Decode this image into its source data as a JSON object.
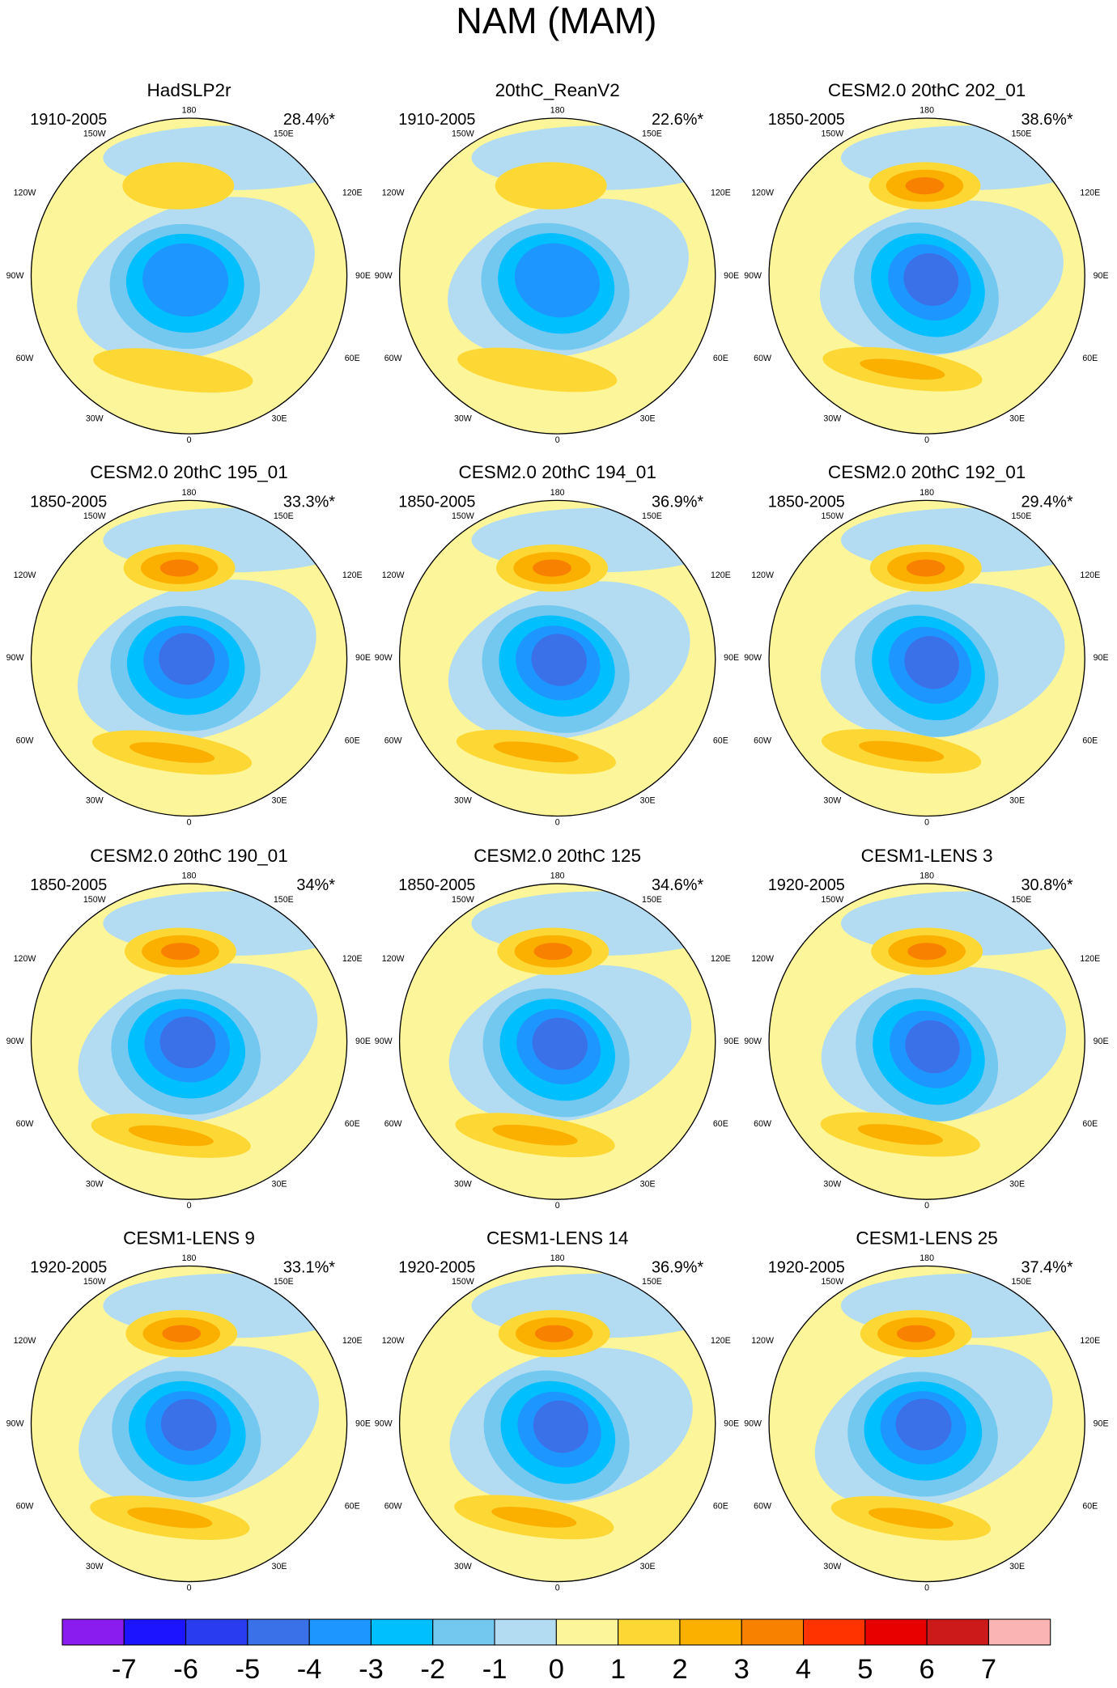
{
  "title": "NAM (MAM)",
  "panels": [
    {
      "title": "HadSLP2r",
      "period": "1910-2005",
      "variance": "28.4%*"
    },
    {
      "title": "20thC_ReanV2",
      "period": "1910-2005",
      "variance": "22.6%*"
    },
    {
      "title": "CESM2.0 20thC 202_01",
      "period": "1850-2005",
      "variance": "38.6%*"
    },
    {
      "title": "CESM2.0 20thC 195_01",
      "period": "1850-2005",
      "variance": "33.3%*"
    },
    {
      "title": "CESM2.0 20thC 194_01",
      "period": "1850-2005",
      "variance": "36.9%*"
    },
    {
      "title": "CESM2.0 20thC 192_01",
      "period": "1850-2005",
      "variance": "29.4%*"
    },
    {
      "title": "CESM2.0 20thC 190_01",
      "period": "1850-2005",
      "variance": "34%*"
    },
    {
      "title": "CESM2.0 20thC 125",
      "period": "1850-2005",
      "variance": "34.6%*"
    },
    {
      "title": "CESM1-LENS 3",
      "period": "1920-2005",
      "variance": "30.8%*"
    },
    {
      "title": "CESM1-LENS 9",
      "period": "1920-2005",
      "variance": "33.1%*"
    },
    {
      "title": "CESM1-LENS 14",
      "period": "1920-2005",
      "variance": "36.9%*"
    },
    {
      "title": "CESM1-LENS 25",
      "period": "1920-2005",
      "variance": "37.4%*"
    }
  ],
  "lon_labels": [
    "180",
    "150W",
    "150E",
    "120W",
    "120E",
    "90W",
    "90E",
    "60W",
    "60E",
    "30W",
    "30E",
    "0"
  ],
  "colorbar": {
    "levels": [
      -7,
      -6,
      -5,
      -4,
      -3,
      -2,
      -1,
      0,
      1,
      2,
      3,
      4,
      5,
      6,
      7
    ],
    "colors": [
      "#8b1cf0",
      "#1c14ff",
      "#2a3cf0",
      "#3a70e8",
      "#1e96ff",
      "#00bfff",
      "#73c8f0",
      "#b3dcf2",
      "#fdf59a",
      "#fdd835",
      "#fbb000",
      "#f98100",
      "#ff3300",
      "#e80000",
      "#cc1a1a",
      "#fbb4b4"
    ]
  }
}
